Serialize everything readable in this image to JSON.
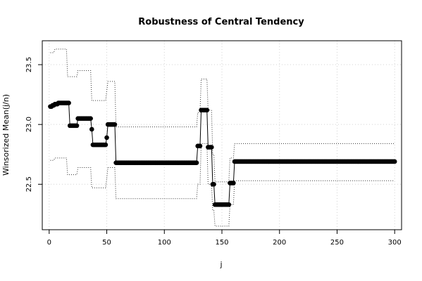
{
  "chart_data": {
    "type": "scatter",
    "title": "Robustness of Central Tendency",
    "xlabel": "j",
    "ylabel": "Winsorized Mean(j/n)",
    "xlim": [
      -6,
      306
    ],
    "ylim": [
      22.12,
      23.7
    ],
    "x_ticks": [
      0,
      50,
      100,
      150,
      200,
      250,
      300
    ],
    "y_ticks": [
      22.5,
      23.0,
      23.5
    ],
    "y_tick_labels": [
      "22.5",
      "23.0",
      "23.5"
    ],
    "grid": true,
    "series": [
      {
        "role": "mean",
        "style": "points-connected",
        "segments": [
          {
            "from": 1,
            "to": 2,
            "value": 23.15
          },
          {
            "from": 3,
            "to": 4,
            "value": 23.16
          },
          {
            "from": 5,
            "to": 7,
            "value": 23.17
          },
          {
            "from": 8,
            "to": 17,
            "value": 23.18
          },
          {
            "from": 18,
            "to": 24,
            "value": 22.99
          },
          {
            "from": 25,
            "to": 36,
            "value": 23.05
          },
          {
            "from": 37,
            "to": 37,
            "value": 22.96
          },
          {
            "from": 38,
            "to": 49,
            "value": 22.83
          },
          {
            "from": 50,
            "to": 50,
            "value": 22.89
          },
          {
            "from": 51,
            "to": 57,
            "value": 23.0
          },
          {
            "from": 58,
            "to": 128,
            "value": 22.68
          },
          {
            "from": 129,
            "to": 131,
            "value": 22.82
          },
          {
            "from": 132,
            "to": 137,
            "value": 23.12
          },
          {
            "from": 138,
            "to": 141,
            "value": 22.81
          },
          {
            "from": 142,
            "to": 143,
            "value": 22.5
          },
          {
            "from": 144,
            "to": 156,
            "value": 22.33
          },
          {
            "from": 157,
            "to": 160,
            "value": 22.51
          },
          {
            "from": 161,
            "to": 300,
            "value": 22.69
          }
        ]
      },
      {
        "role": "upper-band",
        "style": "dotted",
        "segments": [
          {
            "from": 1,
            "to": 4,
            "value": 23.6
          },
          {
            "from": 5,
            "to": 15,
            "value": 23.63
          },
          {
            "from": 16,
            "to": 24,
            "value": 23.4
          },
          {
            "from": 25,
            "to": 36,
            "value": 23.45
          },
          {
            "from": 37,
            "to": 49,
            "value": 23.2
          },
          {
            "from": 50,
            "to": 50,
            "value": 23.28
          },
          {
            "from": 51,
            "to": 57,
            "value": 23.36
          },
          {
            "from": 58,
            "to": 128,
            "value": 22.98
          },
          {
            "from": 129,
            "to": 131,
            "value": 23.1
          },
          {
            "from": 132,
            "to": 137,
            "value": 23.38
          },
          {
            "from": 138,
            "to": 141,
            "value": 23.12
          },
          {
            "from": 142,
            "to": 143,
            "value": 22.75
          },
          {
            "from": 144,
            "to": 156,
            "value": 22.52
          },
          {
            "from": 157,
            "to": 160,
            "value": 22.72
          },
          {
            "from": 161,
            "to": 300,
            "value": 22.84
          }
        ]
      },
      {
        "role": "lower-band",
        "style": "dotted",
        "segments": [
          {
            "from": 1,
            "to": 4,
            "value": 22.7
          },
          {
            "from": 5,
            "to": 15,
            "value": 22.72
          },
          {
            "from": 16,
            "to": 24,
            "value": 22.58
          },
          {
            "from": 25,
            "to": 36,
            "value": 22.64
          },
          {
            "from": 37,
            "to": 49,
            "value": 22.47
          },
          {
            "from": 50,
            "to": 50,
            "value": 22.55
          },
          {
            "from": 51,
            "to": 57,
            "value": 22.64
          },
          {
            "from": 58,
            "to": 128,
            "value": 22.38
          },
          {
            "from": 129,
            "to": 131,
            "value": 22.5
          },
          {
            "from": 132,
            "to": 137,
            "value": 22.84
          },
          {
            "from": 138,
            "to": 141,
            "value": 22.5
          },
          {
            "from": 142,
            "to": 143,
            "value": 22.28
          },
          {
            "from": 144,
            "to": 156,
            "value": 22.15
          },
          {
            "from": 157,
            "to": 160,
            "value": 22.33
          },
          {
            "from": 161,
            "to": 300,
            "value": 22.53
          }
        ]
      }
    ]
  }
}
